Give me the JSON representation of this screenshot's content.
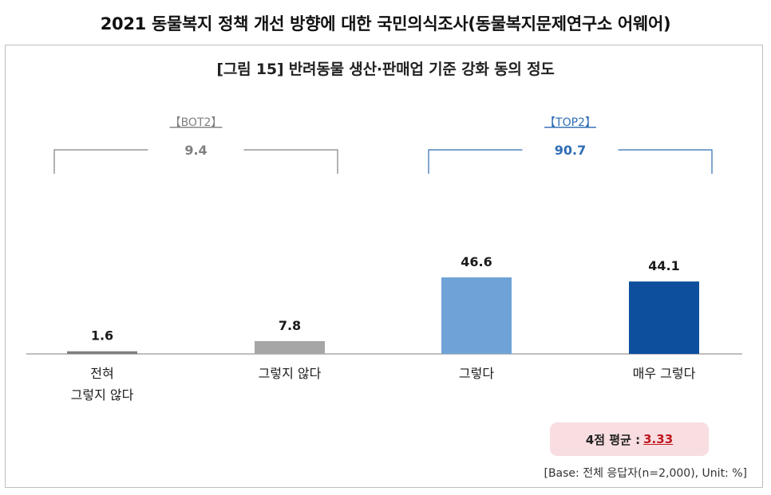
{
  "header": {
    "title": "2021 동물복지 정책 개선 방향에 대한 국민의식조사(동물복지문제연구소 어웨어)",
    "figure_title": "[그림 15] 반려동물 생산·판매업 기준 강화 동의 정도"
  },
  "summary": {
    "average_label": "4점 평균 :",
    "average_value": "3.33",
    "base_note": "[Base: 전체 응답자(n=2,000), Unit: %]"
  },
  "chart_data": {
    "type": "bar",
    "title": "[그림 15] 반려동물 생산·판매업 기준 강화 동의 정도",
    "categories": [
      "전혀 그렇지 않다",
      "그렇지 않다",
      "그렇다",
      "매우 그렇다"
    ],
    "category_lines": [
      [
        "전혀",
        "그렇지 않다"
      ],
      [
        "그렇지 않다"
      ],
      [
        "그렇다"
      ],
      [
        "매우 그렇다"
      ]
    ],
    "values": [
      1.6,
      7.8,
      46.6,
      44.1
    ],
    "value_labels": [
      "1.6",
      "7.8",
      "46.6",
      "44.1"
    ],
    "ylim": [
      0,
      50
    ],
    "colors": [
      "#7f7f7f",
      "#a6a6a6",
      "#6fa3d8",
      "#0d4f9c"
    ],
    "unit": "%",
    "groups": [
      {
        "label": "【BOT2】",
        "value": 9.4,
        "value_label": "9.4",
        "from": 0,
        "to": 1,
        "color": "#808080"
      },
      {
        "label": "【TOP2】",
        "value": 90.7,
        "value_label": "90.7",
        "from": 2,
        "to": 3,
        "color": "#2f6db5"
      }
    ],
    "xlabel": "",
    "ylabel": "",
    "grid": false,
    "legend": "none"
  }
}
